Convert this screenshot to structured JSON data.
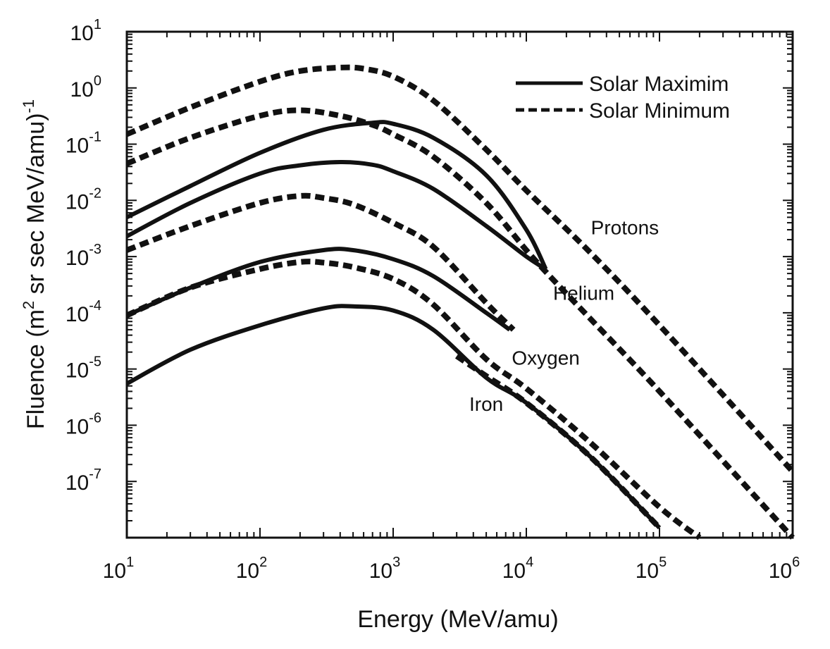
{
  "chart_data": {
    "type": "line",
    "title": "",
    "xlabel": "Energy (MeV/amu)",
    "ylabel": "Fluence (m² sr sec MeV/amu)⁻¹",
    "ylabel_parts": {
      "prefix": "Fluence (m",
      "sup1": "2",
      "middle": " sr sec MeV/amu)",
      "sup2": "-1"
    },
    "x_scale": "log",
    "y_scale": "log",
    "xlim": [
      10,
      1000000
    ],
    "ylim": [
      1e-08,
      10
    ],
    "x_ticks": [
      {
        "value": 10,
        "base": "10",
        "exp": "1"
      },
      {
        "value": 100,
        "base": "10",
        "exp": "2"
      },
      {
        "value": 1000,
        "base": "10",
        "exp": "3"
      },
      {
        "value": 10000,
        "base": "10",
        "exp": "4"
      },
      {
        "value": 100000,
        "base": "10",
        "exp": "5"
      },
      {
        "value": 1000000,
        "base": "10",
        "exp": "6"
      }
    ],
    "y_ticks": [
      {
        "value": 10,
        "base": "10",
        "exp": "1"
      },
      {
        "value": 1,
        "base": "10",
        "exp": "0"
      },
      {
        "value": 0.1,
        "base": "10",
        "exp": "-1"
      },
      {
        "value": 0.01,
        "base": "10",
        "exp": "-2"
      },
      {
        "value": 0.001,
        "base": "10",
        "exp": "-3"
      },
      {
        "value": 0.0001,
        "base": "10",
        "exp": "-4"
      },
      {
        "value": 1e-05,
        "base": "10",
        "exp": "-5"
      },
      {
        "value": 1e-06,
        "base": "10",
        "exp": "-6"
      },
      {
        "value": 1e-07,
        "base": "10",
        "exp": "-7"
      }
    ],
    "grid": false,
    "legend": {
      "position": "top-right",
      "entries": [
        {
          "label": "Solar Maximim",
          "style": "solid"
        },
        {
          "label": "Solar Minimum",
          "style": "dashed"
        }
      ]
    },
    "annotations": [
      {
        "text": "Protons",
        "x": 55000,
        "y": 0.0025
      },
      {
        "text": "Helium",
        "x": 27000,
        "y": 0.00017
      },
      {
        "text": "Oxygen",
        "x": 14000,
        "y": 1.2e-05
      },
      {
        "text": "Iron",
        "x": 5000,
        "y": 1.8e-06
      }
    ],
    "series": [
      {
        "style": "dashed",
        "x": [
          10,
          30,
          100,
          200,
          400,
          600,
          1000,
          2000,
          5000,
          10000,
          30000,
          100000,
          1000000
        ],
        "y": [
          0.15,
          0.45,
          1.3,
          2.0,
          2.3,
          2.2,
          1.6,
          0.6,
          0.08,
          0.015,
          0.0012,
          6e-05,
          1.5e-07
        ]
      },
      {
        "style": "dashed",
        "x": [
          10,
          30,
          100,
          200,
          400,
          700,
          1000,
          2000,
          5000,
          10000,
          15000,
          30000,
          100000,
          1000000
        ],
        "y": [
          0.045,
          0.13,
          0.32,
          0.4,
          0.32,
          0.22,
          0.15,
          0.06,
          0.009,
          0.0013,
          0.00045,
          8e-05,
          4e-06,
          1e-08
        ]
      },
      {
        "style": "solid",
        "x": [
          10,
          30,
          100,
          300,
          700,
          1000,
          2000,
          5000,
          10000,
          14000
        ],
        "y": [
          0.005,
          0.018,
          0.07,
          0.18,
          0.24,
          0.23,
          0.13,
          0.028,
          0.003,
          0.0006
        ]
      },
      {
        "style": "solid",
        "x": [
          10,
          30,
          100,
          200,
          400,
          700,
          1000,
          2000,
          5000,
          10000,
          14000
        ],
        "y": [
          0.0023,
          0.009,
          0.03,
          0.042,
          0.048,
          0.043,
          0.033,
          0.016,
          0.0035,
          0.001,
          0.0006
        ]
      },
      {
        "style": "dashed",
        "x": [
          10,
          30,
          100,
          200,
          300,
          500,
          1000,
          2000,
          5000,
          8000
        ],
        "y": [
          0.0013,
          0.0035,
          0.009,
          0.012,
          0.011,
          0.0085,
          0.004,
          0.0015,
          0.00015,
          5e-05
        ]
      },
      {
        "style": "solid",
        "x": [
          10,
          30,
          100,
          300,
          500,
          1000,
          2000,
          5000,
          7500
        ],
        "y": [
          9e-05,
          0.00028,
          0.0008,
          0.0013,
          0.0013,
          0.0009,
          0.00045,
          0.0001,
          5e-05
        ]
      },
      {
        "style": "dashed",
        "x": [
          10,
          30,
          100,
          200,
          300,
          500,
          1000,
          2000,
          5000,
          10000,
          30000,
          100000,
          200000
        ],
        "y": [
          9e-05,
          0.00028,
          0.0006,
          0.0008,
          0.00078,
          0.00065,
          0.0004,
          0.00014,
          1.5e-05,
          4.5e-06,
          5e-07,
          3.5e-08,
          1e-08
        ]
      },
      {
        "style": "solid",
        "x": [
          10,
          30,
          100,
          300,
          500,
          1000,
          2000,
          5000,
          10000,
          30000,
          100000
        ],
        "y": [
          5.5e-06,
          2.2e-05,
          6e-05,
          0.00012,
          0.00013,
          0.00011,
          5e-05,
          7e-06,
          2.5e-06,
          2.8e-07,
          1.5e-08
        ]
      },
      {
        "style": "dashed",
        "x": [
          3000,
          5000,
          10000,
          30000,
          100000
        ],
        "y": [
          1.7e-05,
          7.5e-06,
          2.5e-06,
          2.8e-07,
          1.5e-08
        ]
      }
    ]
  }
}
